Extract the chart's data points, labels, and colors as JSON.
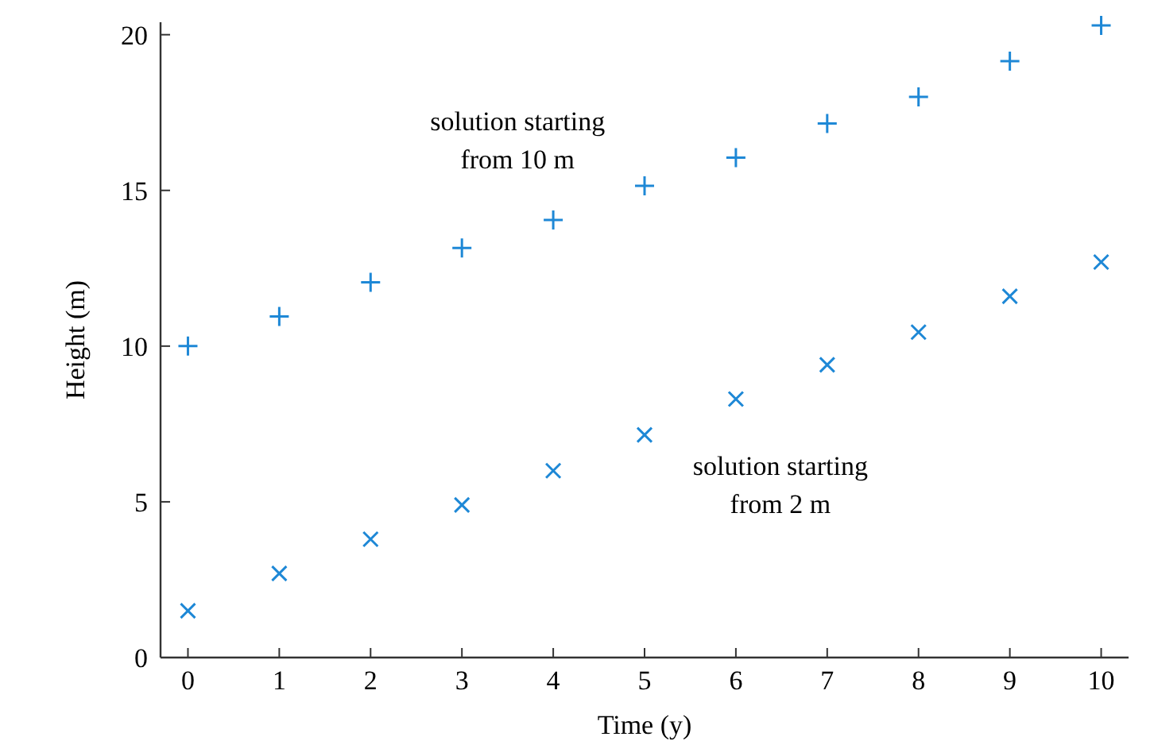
{
  "chart_data": {
    "type": "scatter",
    "xlabel": "Time (y)",
    "ylabel": "Height (m)",
    "x": [
      0,
      1,
      2,
      3,
      4,
      5,
      6,
      7,
      8,
      9,
      10
    ],
    "series": [
      {
        "name": "solution starting\nfrom 10 m",
        "color": "#1e88d6",
        "marker": "cross",
        "values": [
          10,
          10.95,
          12.05,
          13.15,
          14.05,
          15.15,
          16.05,
          17.15,
          18,
          19.15,
          20.3
        ]
      },
      {
        "name": "solution starting\nfrom 2 m",
        "color": "#1e88d6",
        "marker": "x",
        "values": [
          1.5,
          2.7,
          3.8,
          4.9,
          6,
          7.15,
          8.3,
          9.4,
          10.45,
          11.6,
          12.7
        ]
      }
    ],
    "xlim": [
      -0.3,
      10.3
    ],
    "ylim": [
      0,
      20.4
    ],
    "xticks": [
      0,
      1,
      2,
      3,
      4,
      5,
      6,
      7,
      8,
      9,
      10
    ],
    "yticks": [
      0,
      5,
      10,
      15,
      20
    ],
    "grid": false
  }
}
